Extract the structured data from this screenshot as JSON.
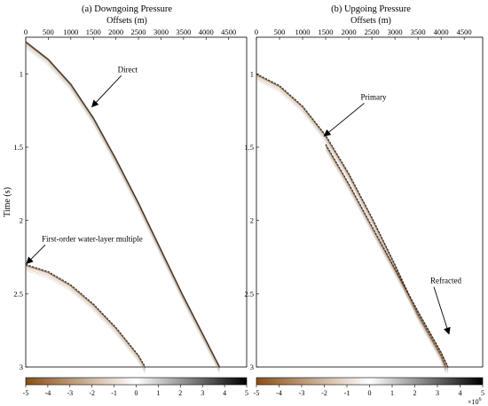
{
  "figure": {
    "panels": [
      {
        "title": "(a) Downgoing Pressure",
        "xlabel": "Offsets (m)",
        "annotations": [
          {
            "text": "Direct",
            "offset_m": 1450,
            "time_s": 1.23
          },
          {
            "text": "First-order water-layer multiple",
            "offset_m": 0,
            "time_s": 2.3
          }
        ]
      },
      {
        "title": "(b) Upgoing Pressure",
        "xlabel": "Offsets (m)",
        "annotations": [
          {
            "text": "Primary",
            "offset_m": 1450,
            "time_s": 1.43
          },
          {
            "text": "Refracted",
            "offset_m": 4150,
            "time_s": 2.78
          }
        ]
      }
    ],
    "ylabel": "Time (s)",
    "colorbar": {
      "ticks": [
        "-5",
        "-4",
        "-3",
        "-2",
        "-1",
        "0",
        "1",
        "2",
        "3",
        "4",
        "5"
      ],
      "exponent_base": "×10",
      "exponent_power": "6",
      "min": -5,
      "max": 5,
      "colors": {
        "negative": "#8b4f14",
        "zero": "#ffffff",
        "positive": "#000000"
      }
    }
  },
  "chart_data": {
    "type": "heatmap",
    "x_ticks": [
      "0",
      "500",
      "1000",
      "1500",
      "2000",
      "2500",
      "3000",
      "3500",
      "4000",
      "4500"
    ],
    "y_ticks": [
      "1",
      "1.5",
      "2",
      "2.5",
      "3"
    ],
    "xlim": [
      0,
      4900
    ],
    "ylim": [
      0.75,
      3.0
    ],
    "panels": [
      {
        "events": [
          {
            "name": "Direct",
            "points": [
              [
                0,
                0.78
              ],
              [
                500,
                0.9
              ],
              [
                1000,
                1.07
              ],
              [
                1500,
                1.3
              ],
              [
                2000,
                1.58
              ],
              [
                2500,
                1.88
              ],
              [
                3000,
                2.2
              ],
              [
                3500,
                2.52
              ],
              [
                4000,
                2.82
              ],
              [
                4300,
                3.0
              ]
            ]
          },
          {
            "name": "First-order water-layer multiple",
            "points": [
              [
                0,
                2.3
              ],
              [
                500,
                2.35
              ],
              [
                1000,
                2.44
              ],
              [
                1500,
                2.57
              ],
              [
                2000,
                2.73
              ],
              [
                2500,
                2.92
              ],
              [
                2650,
                3.0
              ]
            ]
          }
        ]
      },
      {
        "events": [
          {
            "name": "Primary",
            "points": [
              [
                0,
                1.0
              ],
              [
                500,
                1.08
              ],
              [
                1000,
                1.22
              ],
              [
                1500,
                1.42
              ],
              [
                2000,
                1.68
              ],
              [
                2500,
                1.98
              ],
              [
                3000,
                2.3
              ],
              [
                3500,
                2.64
              ],
              [
                4000,
                2.92
              ],
              [
                4100,
                3.0
              ]
            ]
          },
          {
            "name": "Refracted",
            "points": [
              [
                1500,
                1.48
              ],
              [
                2000,
                1.75
              ],
              [
                2500,
                2.04
              ],
              [
                3000,
                2.33
              ],
              [
                3500,
                2.62
              ],
              [
                4000,
                2.9
              ],
              [
                4150,
                3.0
              ]
            ]
          }
        ]
      }
    ]
  }
}
